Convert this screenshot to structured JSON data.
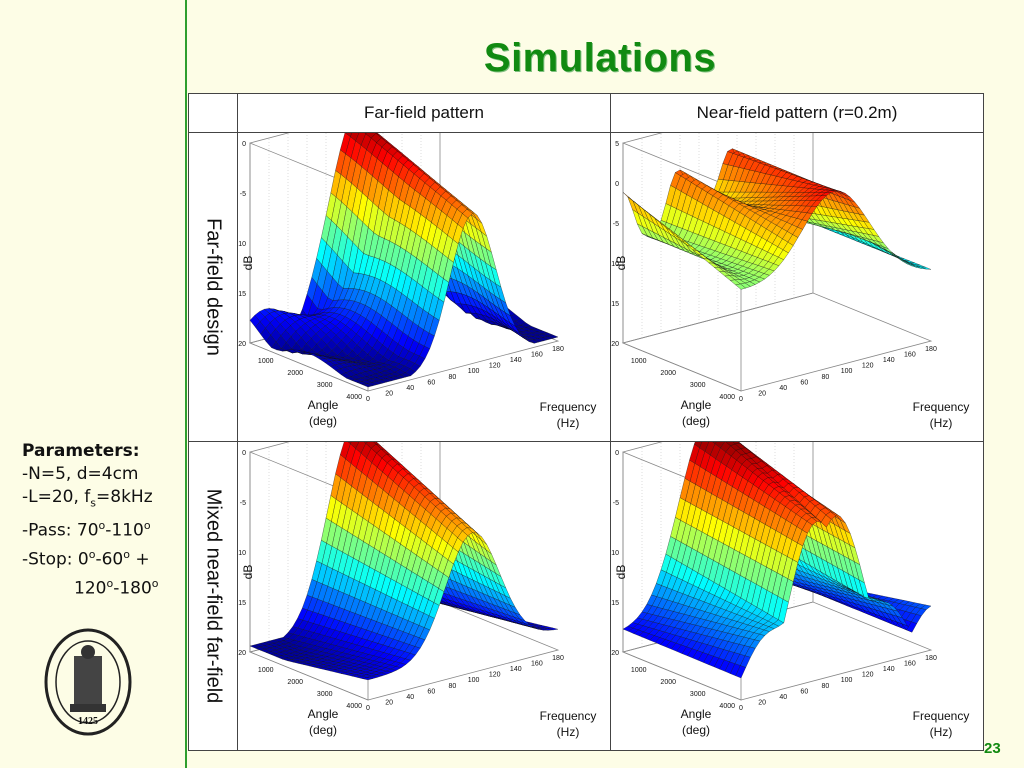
{
  "slide": {
    "title": "Simulations",
    "page_number": "23",
    "parameters": {
      "heading": "Parameters:",
      "n_d": "-N=5, d=4cm",
      "l_prefix": "-L=20, f",
      "l_sub": "s",
      "l_suffix": "=8kHz",
      "pass_prefix": "-Pass: 70",
      "pass_sup1": "o",
      "pass_mid": "-110",
      "pass_sup2": "o",
      "stop_prefix": "-Stop: 0",
      "stop_sup1": "o",
      "stop_mid": "-60",
      "stop_sup2": "o",
      "stop_plus": " +",
      "stop2_a": "120",
      "stop2_sup1": "o",
      "stop2_b": "-180",
      "stop2_sup2": "o"
    },
    "seal_year": "1425"
  },
  "table": {
    "col_headers": [
      "Far-field pattern",
      "Near-field pattern (r=0.2m)"
    ],
    "row_headers": [
      "Far-field design",
      "Mixed near-field far-field"
    ]
  },
  "plot_labels": {
    "zlabel": "dB",
    "angle_label": "Angle",
    "angle_unit": "(deg)",
    "freq_label": "Frequency",
    "freq_unit": "(Hz)",
    "freq_ticks": [
      "1000",
      "2000",
      "3000",
      "4000"
    ],
    "angle_ticks": [
      "0",
      "20",
      "40",
      "60",
      "80",
      "100",
      "120",
      "140",
      "160",
      "180"
    ],
    "db_ticks_a": [
      "0",
      "-5",
      "-10",
      "-15",
      "-20"
    ],
    "db_ticks_b": [
      "5",
      "0",
      "-5",
      "-10",
      "-15",
      "-20"
    ]
  },
  "chart_data": [
    {
      "type": "surface",
      "title": "",
      "xlabel": "Angle (deg)",
      "ylabel": "Frequency (Hz)",
      "zlabel": "dB",
      "x_ticks": [
        0,
        20,
        40,
        60,
        80,
        100,
        120,
        140,
        160,
        180
      ],
      "y_ticks": [
        1000,
        2000,
        3000,
        4000
      ],
      "zlim": [
        -20,
        0
      ],
      "panel": "Far-field design / Far-field pattern"
    },
    {
      "type": "surface",
      "title": "",
      "xlabel": "Angle (deg)",
      "ylabel": "Frequency (Hz)",
      "zlabel": "dB",
      "x_ticks": [
        0,
        20,
        40,
        60,
        80,
        100,
        120,
        140,
        160,
        180
      ],
      "y_ticks": [
        1000,
        2000,
        3000,
        4000
      ],
      "zlim": [
        -20,
        5
      ],
      "panel": "Far-field design / Near-field pattern (r=0.2m)"
    },
    {
      "type": "surface",
      "title": "",
      "xlabel": "Angle (deg)",
      "ylabel": "Frequency (Hz)",
      "zlabel": "dB",
      "x_ticks": [
        0,
        20,
        40,
        60,
        80,
        100,
        120,
        140,
        160,
        180
      ],
      "y_ticks": [
        1000,
        2000,
        3000,
        4000
      ],
      "zlim": [
        -20,
        0
      ],
      "panel": "Mixed near-field far-field / Far-field pattern"
    },
    {
      "type": "surface",
      "title": "",
      "xlabel": "Angle (deg)",
      "ylabel": "Frequency (Hz)",
      "zlabel": "dB",
      "x_ticks": [
        0,
        20,
        40,
        60,
        80,
        100,
        120,
        140,
        160,
        180
      ],
      "y_ticks": [
        1000,
        2000,
        3000,
        4000
      ],
      "zlim": [
        -20,
        0
      ],
      "panel": "Mixed near-field far-field / Near-field pattern (r=0.2m)"
    }
  ]
}
